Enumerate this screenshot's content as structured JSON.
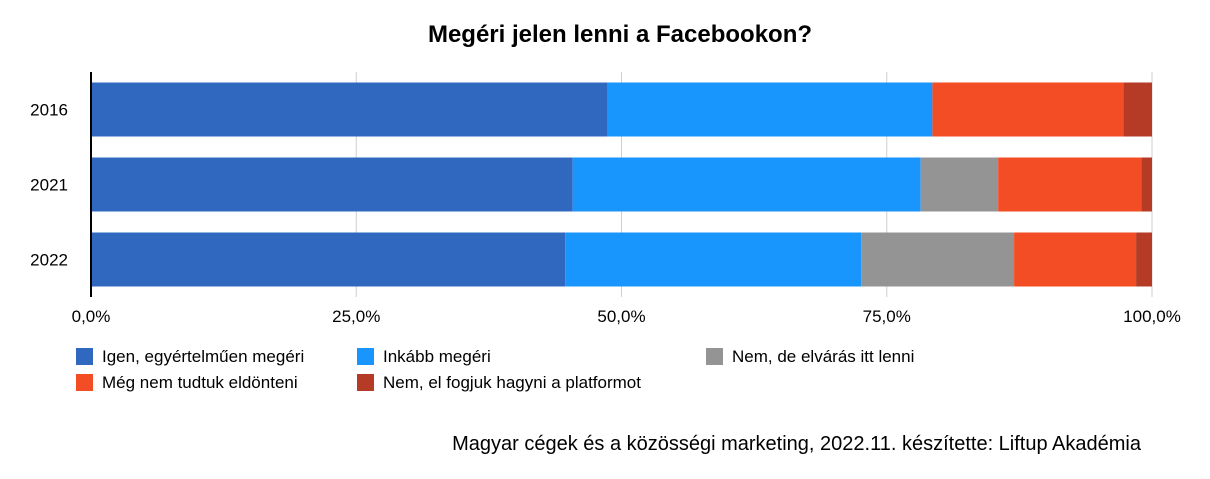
{
  "chart_data": {
    "type": "bar",
    "orientation": "horizontal",
    "stacked": true,
    "title": "Megéri jelen lenni a Facebookon?",
    "categories": [
      "2016",
      "2021",
      "2022"
    ],
    "series": [
      {
        "name": "Igen, egyértelműen megéri",
        "color": "#3068C0",
        "values": [
          48.7,
          45.4,
          44.7
        ]
      },
      {
        "name": "Inkább megéri",
        "color": "#1996FD",
        "values": [
          30.6,
          32.8,
          27.9
        ]
      },
      {
        "name": "Nem, de elvárás itt lenni",
        "color": "#949494",
        "values": [
          0,
          7.3,
          14.4
        ]
      },
      {
        "name": "Még nem tudtuk eldönteni",
        "color": "#F24D25",
        "values": [
          18.0,
          13.5,
          11.5
        ]
      },
      {
        "name": "Nem, el fogjuk hagyni a platformot",
        "color": "#B53B27",
        "values": [
          2.7,
          1.0,
          1.5
        ]
      }
    ],
    "x_ticks": [
      "0,0%",
      "25,0%",
      "50,0%",
      "75,0%",
      "100,0%"
    ],
    "xlim": [
      0,
      100
    ],
    "grid": true,
    "legend_position": "bottom-left",
    "caption": "Magyar cégek és a közösségi marketing, 2022.11. készítette:  Liftup Akadémia"
  }
}
